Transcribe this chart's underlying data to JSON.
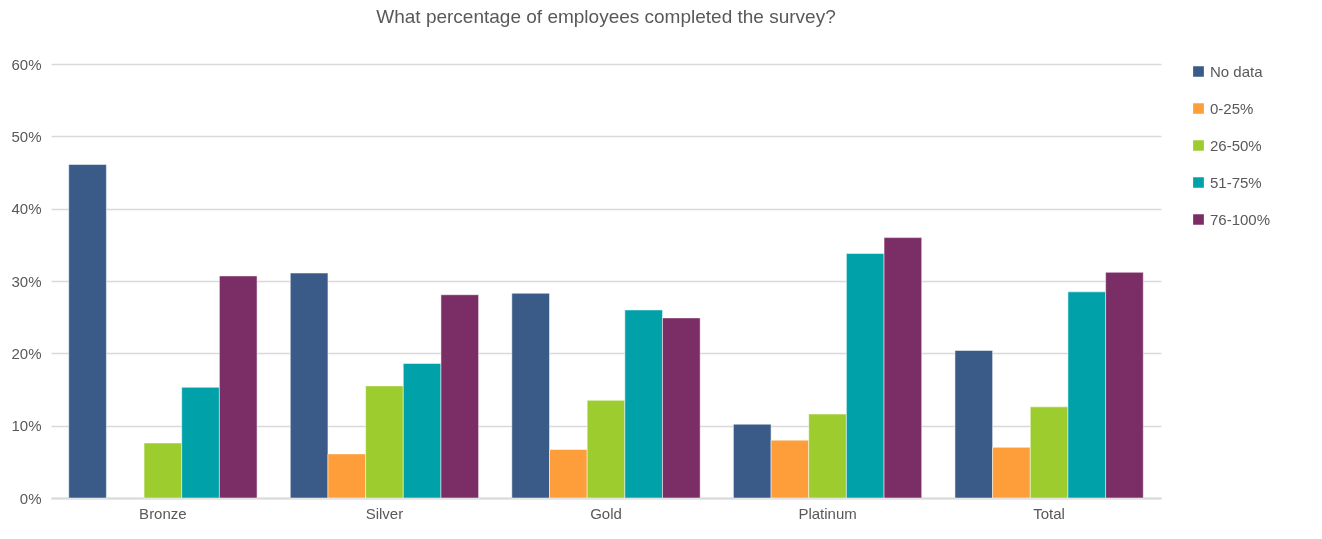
{
  "chart_data": {
    "type": "bar",
    "title": "What percentage of employees completed the survey?",
    "categories": [
      "Bronze",
      "Silver",
      "Gold",
      "Platinum",
      "Total"
    ],
    "series": [
      {
        "name": "No data",
        "color": "#3a5a87",
        "values": [
          46.1,
          31.1,
          28.3,
          10.2,
          20.4
        ]
      },
      {
        "name": "0-25%",
        "color": "#fd9e3a",
        "values": [
          null,
          6.1,
          6.7,
          8.0,
          7.0
        ]
      },
      {
        "name": "26-50%",
        "color": "#9ccc2e",
        "values": [
          7.6,
          15.5,
          13.5,
          11.6,
          12.6
        ]
      },
      {
        "name": "51-75%",
        "color": "#00a1a9",
        "values": [
          15.3,
          18.6,
          26.0,
          33.8,
          28.5
        ]
      },
      {
        "name": "76-100%",
        "color": "#7b2e66",
        "values": [
          30.7,
          28.1,
          24.9,
          36.0,
          31.2
        ]
      }
    ],
    "ylim": [
      0,
      60
    ],
    "yticks": [
      {
        "value": 0,
        "label": "0%"
      },
      {
        "value": 10,
        "label": "10%"
      },
      {
        "value": 20,
        "label": "20%"
      },
      {
        "value": 30,
        "label": "30%"
      },
      {
        "value": 40,
        "label": "40%"
      },
      {
        "value": 50,
        "label": "50%"
      },
      {
        "value": 60,
        "label": "60%"
      }
    ],
    "grid": "y",
    "legend": "right"
  }
}
